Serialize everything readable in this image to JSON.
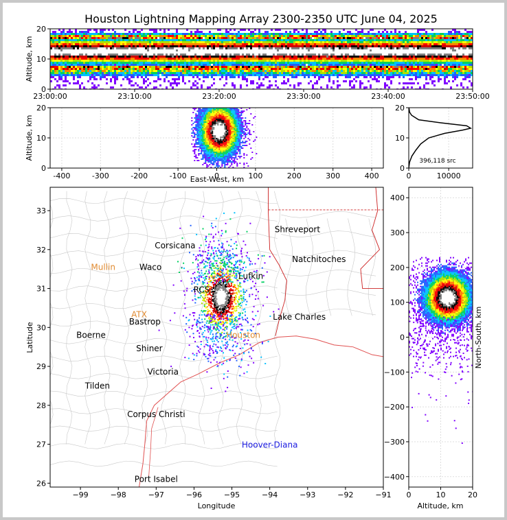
{
  "title": "Houston Lightning Mapping Array 2300-2350 UTC June 04, 2025",
  "colors": {
    "frame": "#c8c8c8",
    "background": "#ffffff",
    "county_lines": "#c8c8c8",
    "state_lines": "#cc2020",
    "coastline": "#e05050",
    "city_label": "#000000",
    "station_label_orange": "#e08a30",
    "station_label_green": "#55cc33",
    "hoover_diana": "#1a1ae0"
  },
  "density_palette": [
    "#8000ff",
    "#2060ff",
    "#00c0ff",
    "#00d060",
    "#b0e000",
    "#ffff00",
    "#ff8000",
    "#ff0000",
    "#cc0000",
    "#000000",
    "#808080",
    "#ffffff"
  ],
  "panels": {
    "time_altitude": {
      "ylabel": "Altitude, km",
      "ylim": [
        0,
        20
      ],
      "yticks": [
        "0",
        "10",
        "20"
      ],
      "xticks": [
        "23:00:00",
        "23:10:00",
        "23:20:00",
        "23:30:00",
        "23:40:00",
        "23:50:00"
      ],
      "xlim_minutes": [
        0,
        50
      ]
    },
    "ew_altitude": {
      "ylabel": "Altitude, km",
      "xlabel": "East-West, km",
      "xlim": [
        -430,
        430
      ],
      "ylim": [
        0,
        20
      ],
      "xticks": [
        "-400",
        "-300",
        "-200",
        "-100",
        "0",
        "100",
        "200",
        "300",
        "400"
      ],
      "yticks": [
        "0",
        "10",
        "20"
      ]
    },
    "altitude_histogram": {
      "xlim": [
        0,
        16000
      ],
      "ylim": [
        0,
        20
      ],
      "xticks": [
        "0",
        "10000"
      ],
      "yticks": [
        "0",
        "10",
        "20"
      ],
      "annotation": "396,118 src"
    },
    "plan_view": {
      "xlabel": "Longitude",
      "ylabel": "Latitude",
      "xlim": [
        -99.8,
        -91.0
      ],
      "ylim": [
        25.9,
        33.6
      ],
      "xticks": [
        "−99",
        "−98",
        "−97",
        "−96",
        "−95",
        "−94",
        "−93",
        "−92",
        "−91"
      ],
      "yticks": [
        "26",
        "27",
        "28",
        "29",
        "30",
        "31",
        "32",
        "33"
      ]
    },
    "ns_altitude": {
      "xlabel": "Altitude, km",
      "ylabel": "North-South, km",
      "xlim": [
        0,
        20
      ],
      "ylim": [
        -430,
        430
      ],
      "xticks": [
        "0",
        "10",
        "20"
      ],
      "yticks": [
        "400",
        "300",
        "200",
        "100",
        "0",
        "−100",
        "−200",
        "−300",
        "−400"
      ]
    }
  },
  "map_labels": [
    {
      "text": "Shreveport",
      "lon": -93.27,
      "lat": 32.52,
      "color": "#000000"
    },
    {
      "text": "Natchitoches",
      "lon": -92.7,
      "lat": 31.75,
      "color": "#000000"
    },
    {
      "text": "Corsicana",
      "lon": -96.5,
      "lat": 32.1,
      "color": "#000000"
    },
    {
      "text": "Waco",
      "lon": -97.15,
      "lat": 31.55,
      "color": "#000000"
    },
    {
      "text": "Mullin",
      "lon": -98.4,
      "lat": 31.55,
      "color": "#e08a30"
    },
    {
      "text": "Lufkin",
      "lon": -94.5,
      "lat": 31.32,
      "color": "#000000"
    },
    {
      "text": "RCS",
      "lon": -95.8,
      "lat": 30.97,
      "color": "#000000"
    },
    {
      "text": "ATX",
      "lon": -97.45,
      "lat": 30.33,
      "color": "#e08a30"
    },
    {
      "text": "Bastrop",
      "lon": -97.3,
      "lat": 30.15,
      "color": "#000000"
    },
    {
      "text": "Lake Charles",
      "lon": -93.22,
      "lat": 30.27,
      "color": "#000000"
    },
    {
      "text": "Boerne",
      "lon": -98.72,
      "lat": 29.8,
      "color": "#000000"
    },
    {
      "text": "Houston",
      "lon": -94.7,
      "lat": 29.8,
      "color": "#e08a30"
    },
    {
      "text": "Shiner",
      "lon": -97.18,
      "lat": 29.46,
      "color": "#000000"
    },
    {
      "text": "Victoria",
      "lon": -96.82,
      "lat": 28.86,
      "color": "#000000"
    },
    {
      "text": "Tilden",
      "lon": -98.55,
      "lat": 28.5,
      "color": "#000000"
    },
    {
      "text": "Corpus Christi",
      "lon": -97.0,
      "lat": 27.77,
      "color": "#000000"
    },
    {
      "text": "Hoover-Diana",
      "lon": -94.0,
      "lat": 26.98,
      "color": "#1a1ae0"
    },
    {
      "text": "Port Isabel",
      "lon": -97.0,
      "lat": 26.1,
      "color": "#000000"
    }
  ],
  "chart_data": [
    {
      "type": "heatmap",
      "title": "Houston Lightning Mapping Array 2300-2350 UTC June 04, 2025",
      "xlabel": "",
      "ylabel": "Altitude, km",
      "x_range": [
        "23:00:00",
        "23:50:00"
      ],
      "y_range": [
        0,
        20
      ],
      "description_values": {
        "dense_altitude_band_km": [
          9,
          16
        ],
        "peak_altitude_km": 13
      }
    },
    {
      "type": "heatmap",
      "xlabel": "East-West, km",
      "ylabel": "Altitude, km",
      "x_range": [
        -430,
        430
      ],
      "y_range": [
        0,
        20
      ],
      "description_values": {
        "core_east_west_km": 5,
        "core_altitude_km": 13
      }
    },
    {
      "type": "line",
      "xlabel": "",
      "ylabel": "",
      "xlim": [
        0,
        16000
      ],
      "ylim": [
        0,
        20
      ],
      "series": [
        {
          "points": [
            [
              0,
              0
            ],
            [
              200,
              2
            ],
            [
              800,
              4
            ],
            [
              1800,
              6
            ],
            [
              3000,
              8
            ],
            [
              5000,
              10
            ],
            [
              9000,
              11.5
            ],
            [
              13500,
              12.6
            ],
            [
              15500,
              13.2
            ],
            [
              14500,
              14
            ],
            [
              8000,
              15
            ],
            [
              2500,
              16
            ],
            [
              700,
              17.5
            ],
            [
              200,
              18.5
            ],
            [
              50,
              20
            ]
          ]
        }
      ],
      "annotation": "396,118 src"
    },
    {
      "type": "scatter",
      "xlabel": "Longitude",
      "ylabel": "Latitude",
      "xlim": [
        -99.8,
        -91.0
      ],
      "ylim": [
        25.9,
        33.6
      ],
      "core_lon": -95.3,
      "core_lat": 30.8
    },
    {
      "type": "heatmap",
      "xlabel": "Altitude, km",
      "ylabel": "North-South, km",
      "x_range": [
        0,
        20
      ],
      "y_range": [
        -430,
        430
      ],
      "description_values": {
        "core_north_south_km": 115,
        "core_altitude_km": 12
      }
    }
  ]
}
